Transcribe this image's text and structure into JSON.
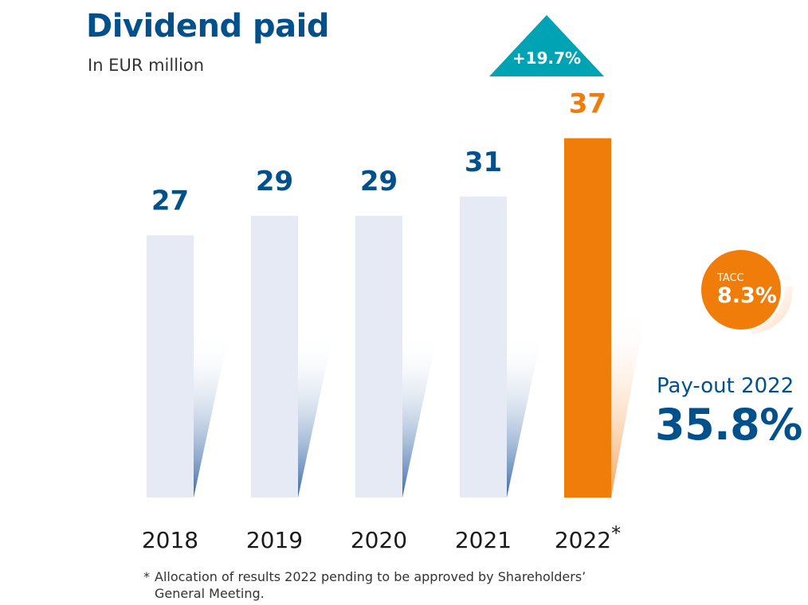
{
  "header": {
    "title": "Dividend paid",
    "subtitle": "In EUR million"
  },
  "growth_badge": {
    "label": "+19.7%"
  },
  "tacc": {
    "label": "TACC",
    "value": "8.3%"
  },
  "payout": {
    "label": "Pay-out 2022",
    "value": "35.8%"
  },
  "footnote": {
    "marker": "*",
    "text": "Allocation of results 2022 pending to be approved by Shareholders’ General Meeting."
  },
  "colors": {
    "title": "#00508c",
    "bar_default": "#e6eaf5",
    "bar_highlight": "#f07d0a",
    "label_default": "#00508c",
    "label_highlight": "#f07d0a",
    "growth_badge": "#00a3b4",
    "tacc_badge": "#f07d0a"
  },
  "chart_data": {
    "type": "bar",
    "title": "Dividend paid",
    "subtitle": "In EUR million",
    "categories": [
      "2018",
      "2019",
      "2020",
      "2021",
      "2022*"
    ],
    "values": [
      27,
      29,
      29,
      31,
      37
    ],
    "value_labels": [
      "27",
      "29",
      "29",
      "31",
      "37"
    ],
    "highlight_index": 4,
    "xlabel": "",
    "ylabel": "",
    "grid": false,
    "legend": "none"
  }
}
